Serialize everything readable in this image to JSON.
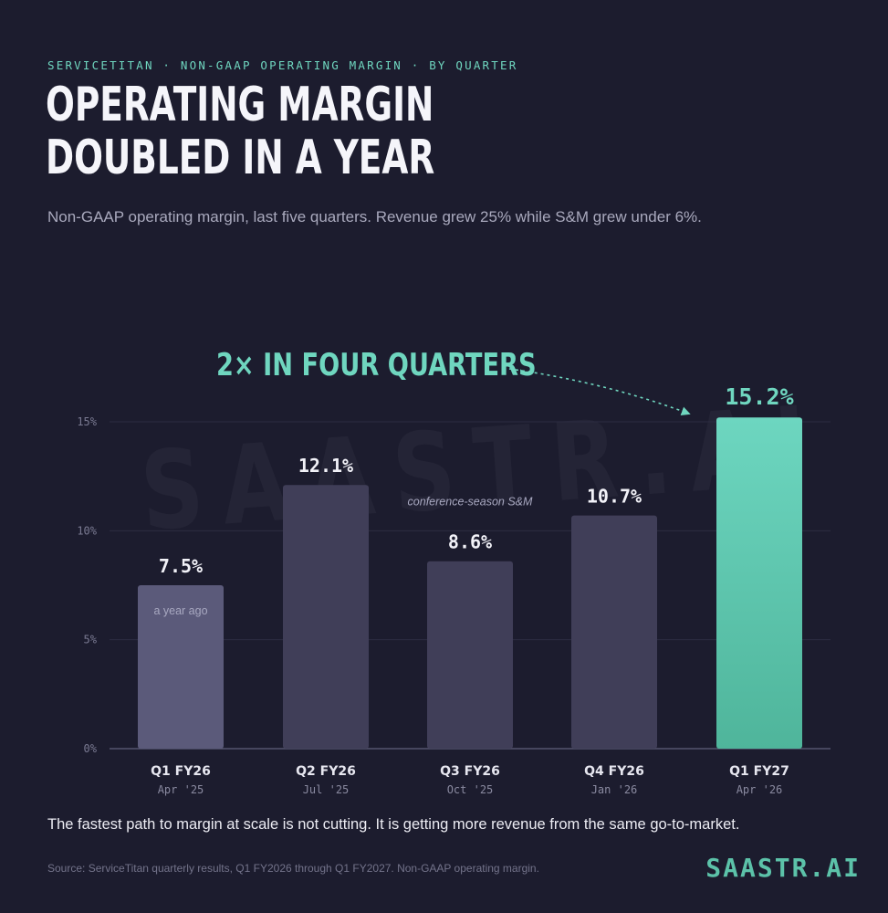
{
  "header": {
    "eyebrow": "SERVICETITAN · NON-GAAP OPERATING MARGIN · BY QUARTER",
    "title_line1": "OPERATING MARGIN",
    "title_line2": "DOUBLED IN A YEAR",
    "subtitle": "Non-GAAP operating margin, last five quarters. Revenue grew 25% while S&M grew under 6%."
  },
  "watermark": "SAASTR.AI",
  "callout": "2× IN FOUR QUARTERS",
  "footer": {
    "takeaway": "The fastest path to margin at scale is not cutting. It is getting more revenue from the same go-to-market.",
    "source": "Source: ServiceTitan quarterly results, Q1 FY2026 through Q1 FY2027. Non-GAAP operating margin.",
    "brand": "SAASTR.AI"
  },
  "colors": {
    "background": "#1c1c2e",
    "bar_first": "#5b5a7a",
    "bar_default": "#403e58",
    "bar_highlight_top": "#6dd6c0",
    "bar_highlight_bottom": "#4fb59b",
    "accent": "#6fd6bf",
    "grid": "#2c2c42"
  },
  "chart_data": {
    "type": "bar",
    "categories": [
      "Q1 FY26",
      "Q2 FY26",
      "Q3 FY26",
      "Q4 FY26",
      "Q1 FY27"
    ],
    "sublabels": [
      "Apr '25",
      "Jul '25",
      "Oct '25",
      "Jan '26",
      "Apr '26"
    ],
    "values": [
      7.5,
      12.1,
      8.6,
      10.7,
      15.2
    ],
    "value_labels": [
      "7.5%",
      "12.1%",
      "8.6%",
      "10.7%",
      "15.2%"
    ],
    "highlight_index": 4,
    "annotations": [
      {
        "index": 0,
        "text": "a year ago",
        "placement": "inside"
      },
      {
        "index": 2,
        "text": "conference-season S&M",
        "placement": "above"
      }
    ],
    "yticks": [
      0,
      5,
      10,
      15
    ],
    "ytick_labels": [
      "0%",
      "5%",
      "10%",
      "15%"
    ],
    "ylim": [
      0,
      15
    ],
    "grid": true
  }
}
